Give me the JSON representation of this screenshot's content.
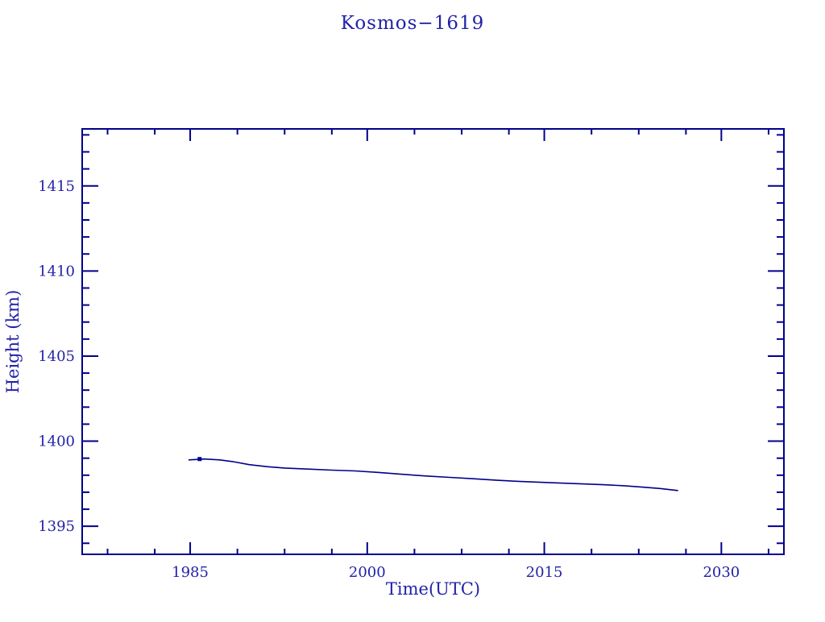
{
  "page": {
    "background_color": "#ffffff"
  },
  "chart_data": {
    "type": "line",
    "title": "Kosmos−1619",
    "xlabel": "Time(UTC)",
    "ylabel": "Height (km)",
    "axis_color": "#00008b",
    "line_color": "#00008b",
    "text_color": "#2222a8",
    "grid": false,
    "legend": null,
    "x_range": [
      1975.85,
      2035.3
    ],
    "y_range": [
      1393.35,
      1418.35
    ],
    "x_major_ticks": [
      1985,
      2000,
      2015,
      2030
    ],
    "x_major_labels": [
      "1985",
      "2000",
      "2015",
      "2030"
    ],
    "x_minor_ticks": [
      1978,
      1982,
      1989,
      1993,
      1997,
      2004,
      2008,
      2012,
      2019,
      2023,
      2027,
      2034
    ],
    "y_major_ticks": [
      1395,
      1400,
      1405,
      1410,
      1415
    ],
    "y_major_labels": [
      "1395",
      "1400",
      "1405",
      "1410",
      "1415"
    ],
    "y_minor_ticks": [
      1394,
      1396,
      1397,
      1398,
      1399,
      1401,
      1402,
      1403,
      1404,
      1406,
      1407,
      1408,
      1409,
      1411,
      1412,
      1413,
      1414,
      1416,
      1417,
      1418
    ],
    "series": [
      {
        "name": "orbit-height",
        "points": [
          [
            1984.9,
            1398.9
          ],
          [
            1986.2,
            1398.95
          ],
          [
            1987.5,
            1398.9
          ],
          [
            1988.6,
            1398.8
          ],
          [
            1990.0,
            1398.62
          ],
          [
            1991.5,
            1398.5
          ],
          [
            1993.0,
            1398.42
          ],
          [
            1995.0,
            1398.36
          ],
          [
            1997.0,
            1398.3
          ],
          [
            1999.0,
            1398.25
          ],
          [
            2001.0,
            1398.16
          ],
          [
            2003.0,
            1398.05
          ],
          [
            2005.0,
            1397.95
          ],
          [
            2007.0,
            1397.87
          ],
          [
            2009.0,
            1397.79
          ],
          [
            2011.0,
            1397.7
          ],
          [
            2013.0,
            1397.63
          ],
          [
            2015.5,
            1397.56
          ],
          [
            2018.0,
            1397.5
          ],
          [
            2020.0,
            1397.44
          ],
          [
            2021.8,
            1397.38
          ],
          [
            2023.3,
            1397.3
          ],
          [
            2024.8,
            1397.22
          ],
          [
            2026.3,
            1397.1
          ]
        ]
      }
    ],
    "marker_point": [
      1985.8,
      1398.95
    ]
  }
}
